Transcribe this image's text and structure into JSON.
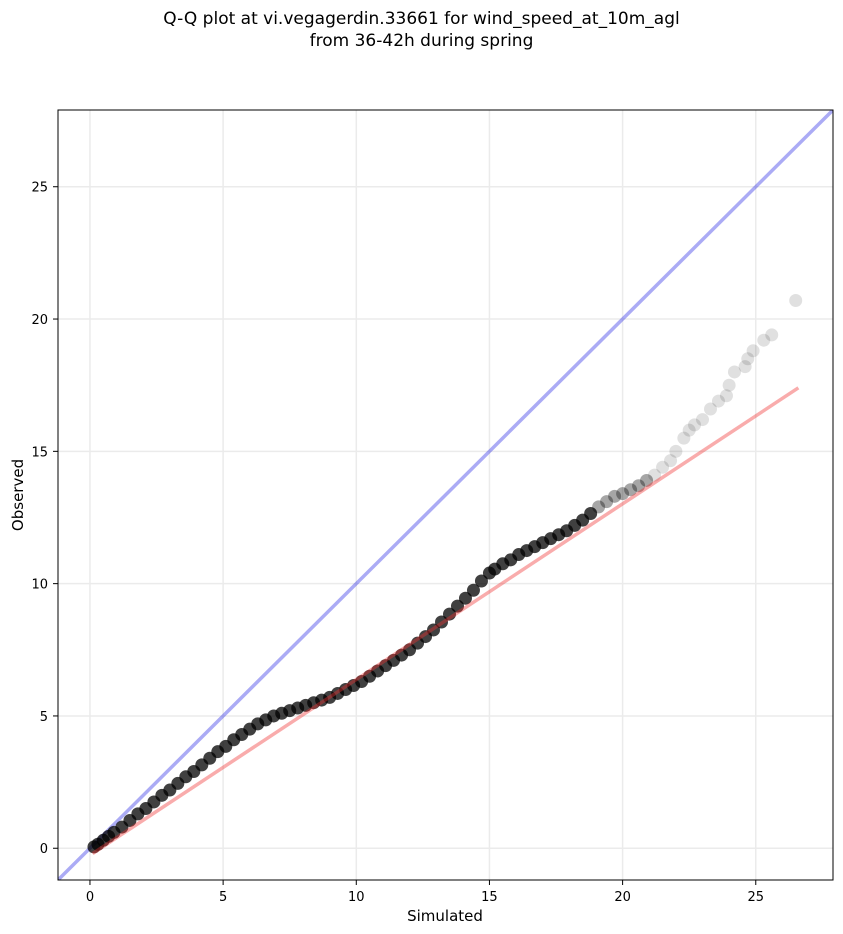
{
  "chart_data": {
    "type": "scatter",
    "title_line1": "Q-Q plot at vi.vegagerdin.33661 for wind_speed_at_10m_agl",
    "title_line2": "from 36-42h during spring",
    "xlabel": "Simulated",
    "ylabel": "Observed",
    "xlim": [
      -1.2,
      27.9
    ],
    "ylim": [
      -1.2,
      27.9
    ],
    "xticks": [
      0,
      5,
      10,
      15,
      20,
      25
    ],
    "yticks": [
      0,
      5,
      10,
      15,
      20,
      25
    ],
    "grid": true,
    "reference_line": {
      "name": "y = x",
      "color": "#0000e0"
    },
    "fit_line": {
      "x": [
        0.1,
        26.6
      ],
      "y": [
        -0.2,
        17.4
      ],
      "color": "#f03030"
    },
    "series": [
      {
        "name": "quantiles",
        "color": "#000000",
        "x": [
          0.15,
          0.3,
          0.5,
          0.7,
          0.9,
          1.2,
          1.5,
          1.8,
          2.1,
          2.4,
          2.7,
          3.0,
          3.3,
          3.6,
          3.9,
          4.2,
          4.5,
          4.8,
          5.1,
          5.4,
          5.7,
          6.0,
          6.3,
          6.6,
          6.9,
          7.2,
          7.5,
          7.8,
          8.1,
          8.4,
          8.7,
          9.0,
          9.3,
          9.6,
          9.9,
          10.2,
          10.5,
          10.8,
          11.1,
          11.4,
          11.7,
          12.0,
          12.3,
          12.6,
          12.9,
          13.2,
          13.5,
          13.8,
          14.1,
          14.4,
          14.7,
          15.0,
          15.2,
          15.5,
          15.8,
          16.1,
          16.4,
          16.7,
          17.0,
          17.3,
          17.6,
          17.9,
          18.2,
          18.5,
          18.8,
          19.1,
          19.4,
          19.7,
          20.0,
          20.3,
          20.6,
          20.9,
          21.2,
          21.5,
          21.8,
          22.0,
          22.3,
          22.5,
          22.7,
          23.0,
          23.3,
          23.6,
          23.9,
          24.0,
          24.2,
          24.6,
          24.7,
          24.9,
          25.3,
          25.6,
          26.5
        ],
        "y": [
          0.05,
          0.15,
          0.3,
          0.45,
          0.6,
          0.8,
          1.05,
          1.3,
          1.5,
          1.75,
          2.0,
          2.2,
          2.45,
          2.7,
          2.9,
          3.15,
          3.4,
          3.65,
          3.85,
          4.1,
          4.3,
          4.5,
          4.7,
          4.85,
          5.0,
          5.1,
          5.2,
          5.3,
          5.4,
          5.5,
          5.6,
          5.7,
          5.85,
          6.0,
          6.15,
          6.3,
          6.5,
          6.7,
          6.9,
          7.1,
          7.3,
          7.5,
          7.75,
          8.0,
          8.25,
          8.55,
          8.85,
          9.15,
          9.45,
          9.75,
          10.1,
          10.4,
          10.55,
          10.75,
          10.9,
          11.1,
          11.25,
          11.4,
          11.55,
          11.7,
          11.85,
          12.0,
          12.2,
          12.4,
          12.65,
          12.9,
          13.1,
          13.3,
          13.4,
          13.55,
          13.7,
          13.9,
          14.1,
          14.4,
          14.65,
          15.0,
          15.5,
          15.8,
          16.0,
          16.2,
          16.6,
          16.9,
          17.1,
          17.5,
          18.0,
          18.2,
          18.5,
          18.8,
          19.2,
          19.4,
          20.7
        ]
      }
    ]
  }
}
